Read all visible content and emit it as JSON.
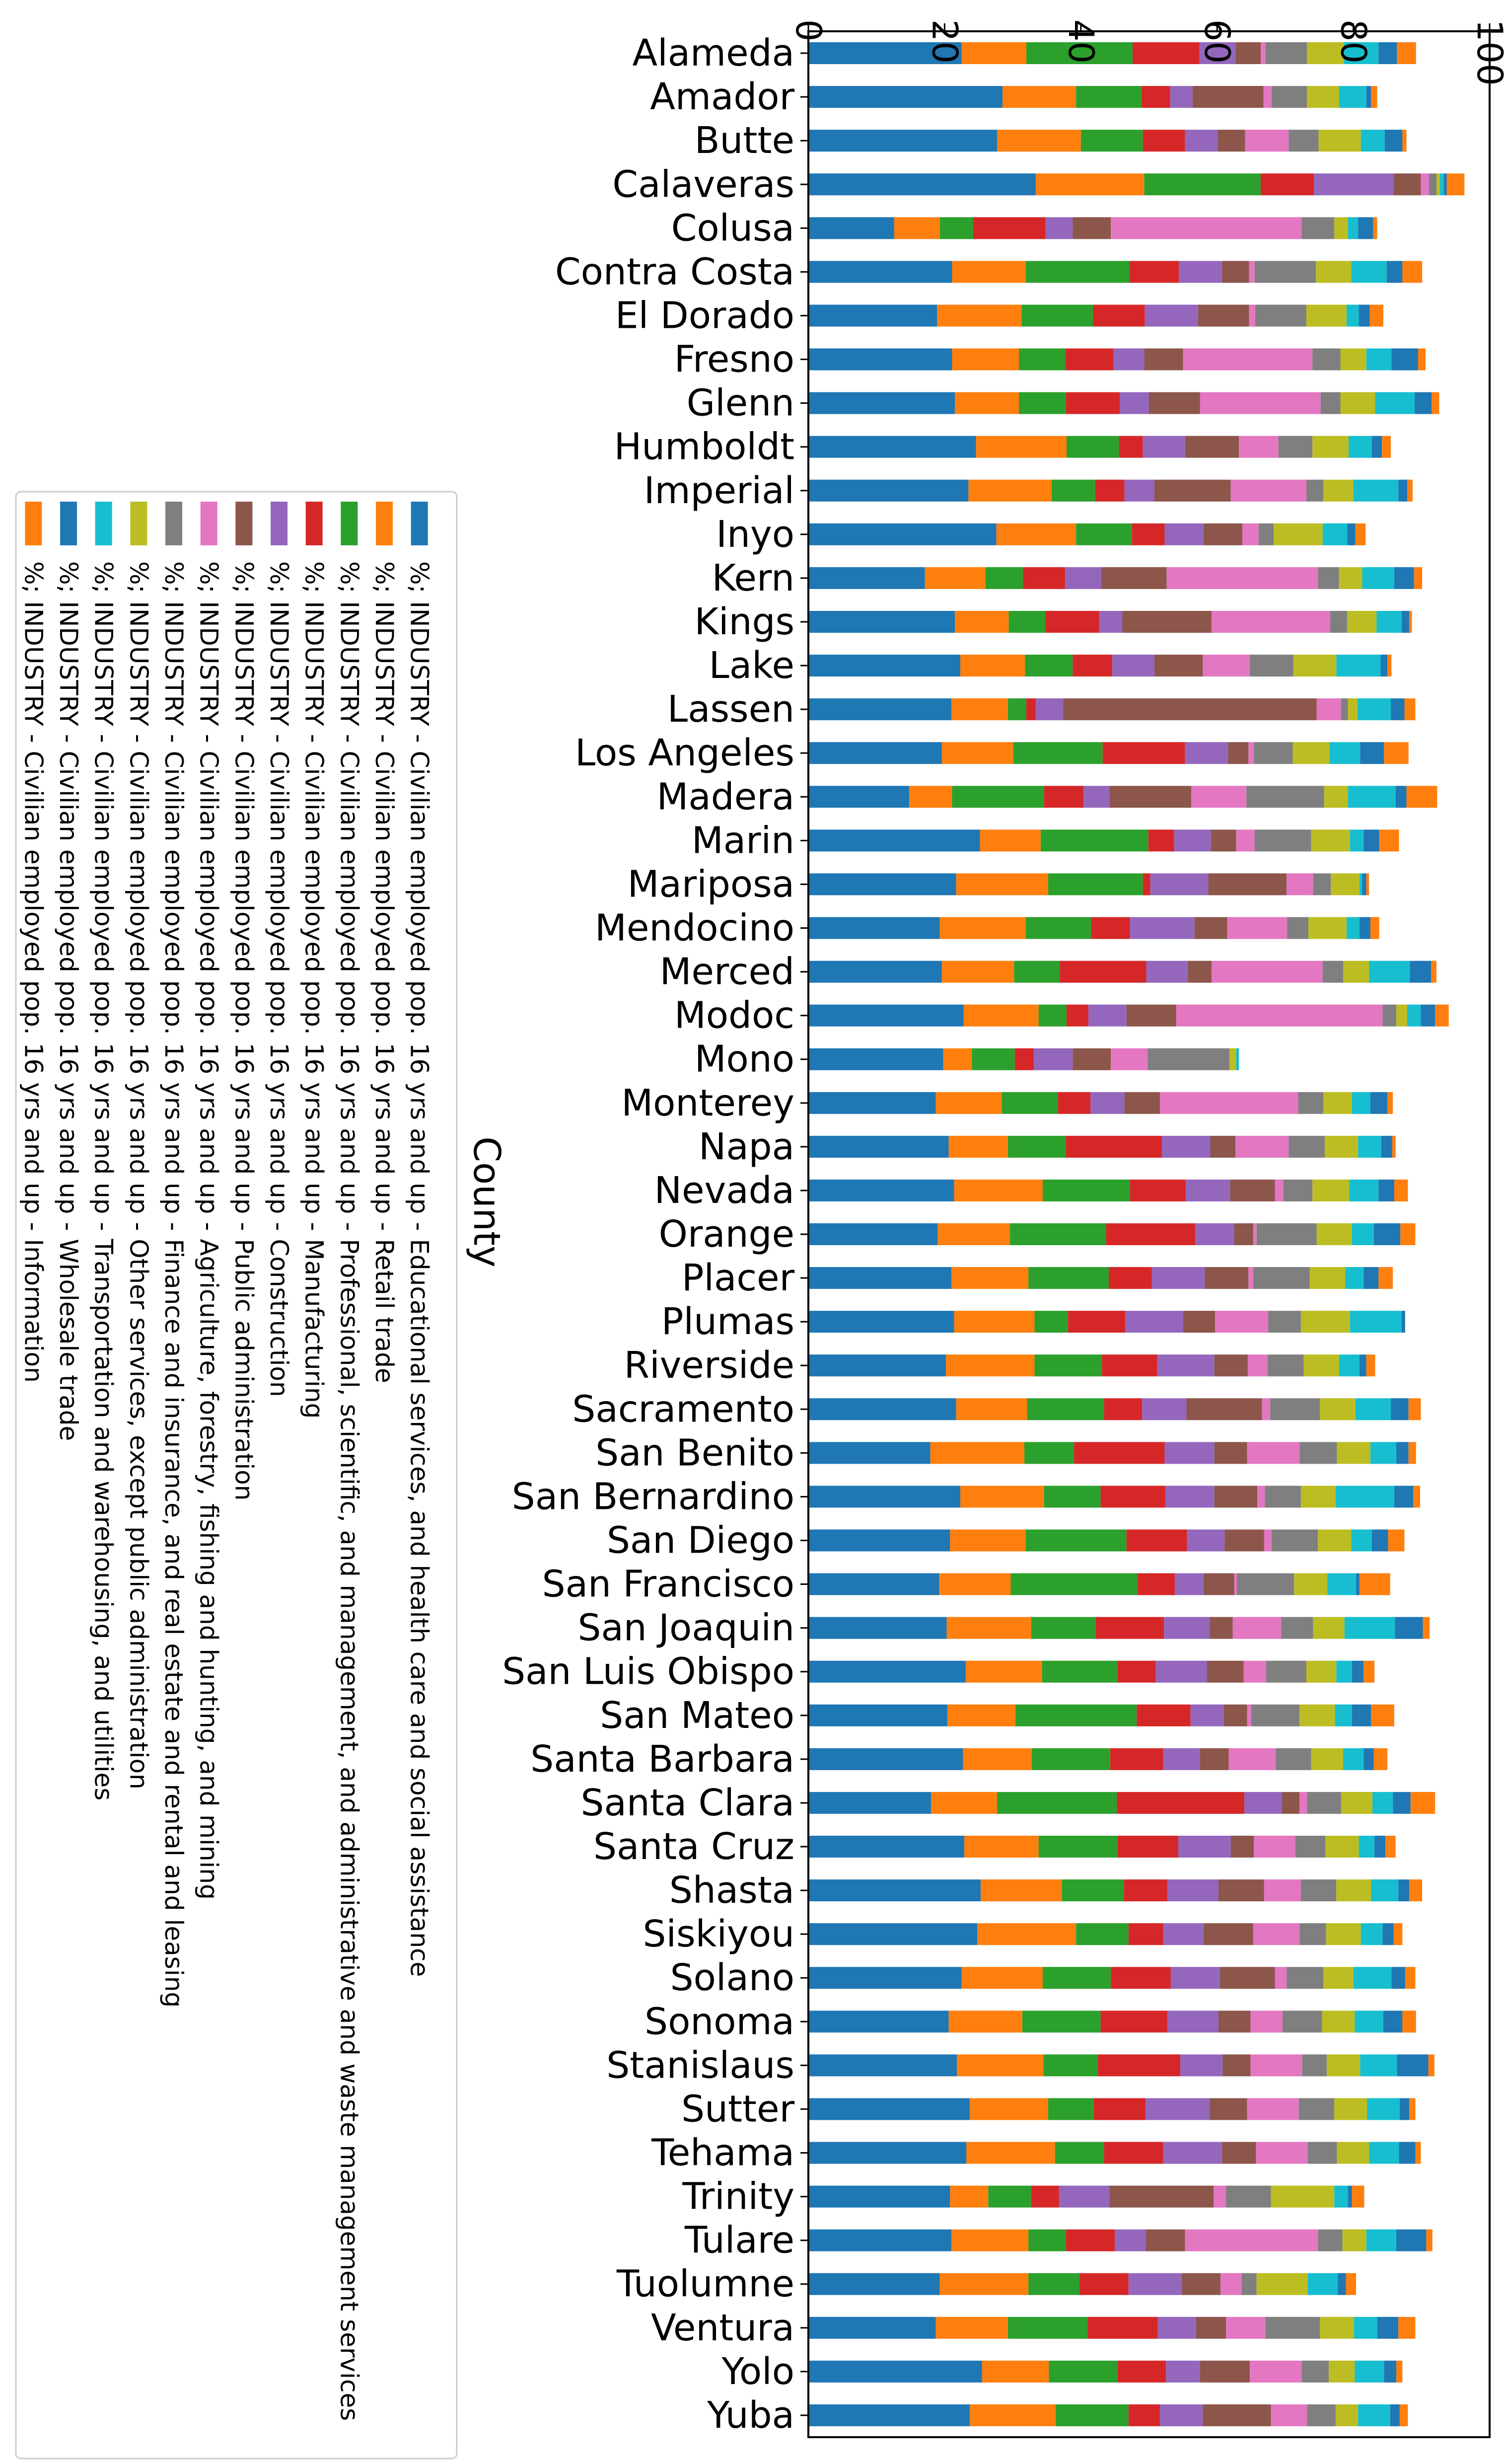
{
  "chart_data": {
    "type": "bar",
    "orientation": "horizontal-stacked",
    "rotation": "figure rotated 90 degrees clockwise",
    "title": "",
    "xlabel": "",
    "ylabel": "County",
    "xlim": [
      0,
      100
    ],
    "ticks": [
      "0",
      "20",
      "40",
      "60",
      "80",
      "100"
    ],
    "grid": false,
    "legend_position": "left",
    "categories": [
      "Alameda",
      "Amador",
      "Butte",
      "Calaveras",
      "Colusa",
      "Contra Costa",
      "El Dorado",
      "Fresno",
      "Glenn",
      "Humboldt",
      "Imperial",
      "Inyo",
      "Kern",
      "Kings",
      "Lake",
      "Lassen",
      "Los Angeles",
      "Madera",
      "Marin",
      "Mariposa",
      "Mendocino",
      "Merced",
      "Modoc",
      "Mono",
      "Monterey",
      "Napa",
      "Nevada",
      "Orange",
      "Placer",
      "Plumas",
      "Riverside",
      "Sacramento",
      "San Benito",
      "San Bernardino",
      "San Diego",
      "San Francisco",
      "San Joaquin",
      "San Luis Obispo",
      "San Mateo",
      "Santa Barbara",
      "Santa Clara",
      "Santa Cruz",
      "Shasta",
      "Siskiyou",
      "Solano",
      "Sonoma",
      "Stanislaus",
      "Sutter",
      "Tehama",
      "Trinity",
      "Tulare",
      "Tuolumne",
      "Ventura",
      "Yolo",
      "Yuba"
    ],
    "series": [
      {
        "name": "%; INDUSTRY - Civilian employed pop. 16 yrs and up - Educational services, and health care and social assistance",
        "color": "#1f77b4",
        "values": [
          22.5,
          28.5,
          27.7,
          33.4,
          12.6,
          21.1,
          18.9,
          21.1,
          21.5,
          24.6,
          23.5,
          27.6,
          17.1,
          21.5,
          22.3,
          21.0,
          19.6,
          14.8,
          25.2,
          21.7,
          19.3,
          19.6,
          22.8,
          19.8,
          18.7,
          20.6,
          21.4,
          19.0,
          21.0,
          21.4,
          20.2,
          21.7,
          17.9,
          22.3,
          20.8,
          19.2,
          20.3,
          23.1,
          20.4,
          22.7,
          18.0,
          22.9,
          25.3,
          24.8,
          22.5,
          20.6,
          21.8,
          23.7,
          23.2,
          20.8,
          21.0,
          19.3,
          18.7,
          25.5,
          23.7
        ]
      },
      {
        "name": "%; INDUSTRY - Civilian employed pop. 16 yrs and up - Retail trade",
        "color": "#ff7f0e",
        "values": [
          9.5,
          10.8,
          12.3,
          15.9,
          6.7,
          10.8,
          12.4,
          9.8,
          9.4,
          13.3,
          12.2,
          11.7,
          8.9,
          7.9,
          9.5,
          8.3,
          10.5,
          6.3,
          8.9,
          13.5,
          12.6,
          10.6,
          11.0,
          4.2,
          9.7,
          8.7,
          13.0,
          10.6,
          11.3,
          11.8,
          13.0,
          10.4,
          13.8,
          12.3,
          11.1,
          10.5,
          12.4,
          11.2,
          10.0,
          10.1,
          9.7,
          10.9,
          11.9,
          14.5,
          11.9,
          10.8,
          12.7,
          11.5,
          13.0,
          5.6,
          11.3,
          13.0,
          10.6,
          9.8,
          12.6
        ]
      },
      {
        "name": "%; INDUSTRY - Civilian employed pop. 16 yrs and up - Professional, scientific, and management, and administrative and waste management services",
        "color": "#2ca02c",
        "values": [
          15.6,
          9.6,
          9.1,
          17.1,
          4.9,
          15.2,
          10.5,
          6.8,
          6.9,
          7.7,
          6.4,
          8.2,
          5.5,
          5.4,
          7.0,
          2.7,
          13.1,
          13.5,
          15.8,
          13.9,
          9.6,
          6.7,
          4.1,
          6.3,
          8.2,
          8.5,
          12.8,
          14.1,
          11.8,
          4.9,
          9.9,
          11.3,
          7.3,
          8.3,
          14.8,
          18.6,
          9.5,
          11.1,
          17.8,
          11.5,
          17.6,
          11.6,
          9.1,
          7.7,
          10.0,
          11.5,
          8.0,
          6.7,
          7.2,
          6.3,
          5.5,
          7.5,
          11.7,
          10.1,
          10.7
        ]
      },
      {
        "name": "%; INDUSTRY - Civilian employed pop. 16 yrs and up - Manufacturing",
        "color": "#d62728",
        "values": [
          9.8,
          4.2,
          6.2,
          7.8,
          10.6,
          7.3,
          7.6,
          7.1,
          7.9,
          3.5,
          4.3,
          4.8,
          6.2,
          7.9,
          5.8,
          1.4,
          12.1,
          5.8,
          3.8,
          1.1,
          5.7,
          12.7,
          3.2,
          2.8,
          4.8,
          14.1,
          8.2,
          13.1,
          6.3,
          8.4,
          8.1,
          5.6,
          13.3,
          9.5,
          8.9,
          5.5,
          10.0,
          5.6,
          7.9,
          7.8,
          18.7,
          8.9,
          6.4,
          5.1,
          8.8,
          9.8,
          12.1,
          7.6,
          8.7,
          4.1,
          7.2,
          7.2,
          10.3,
          7.1,
          4.6
        ]
      },
      {
        "name": "%; INDUSTRY - Civilian employed pop. 16 yrs and up - Construction",
        "color": "#9467bd",
        "values": [
          5.3,
          3.3,
          4.8,
          11.7,
          4.0,
          6.3,
          7.8,
          4.5,
          4.3,
          6.2,
          4.4,
          5.7,
          5.3,
          3.4,
          6.2,
          4.0,
          6.3,
          3.8,
          5.4,
          8.5,
          9.5,
          6.1,
          5.6,
          5.7,
          5.0,
          7.1,
          6.5,
          5.7,
          7.8,
          8.5,
          8.4,
          6.5,
          7.3,
          7.2,
          5.5,
          4.2,
          6.7,
          7.5,
          4.9,
          5.4,
          5.5,
          7.7,
          7.5,
          5.9,
          7.2,
          7.5,
          6.2,
          9.4,
          8.6,
          7.4,
          4.5,
          7.8,
          5.6,
          5.0,
          6.3
        ]
      },
      {
        "name": "%; INDUSTRY - Civilian employed pop. 16 yrs and up - Public administration",
        "color": "#8c564b",
        "values": [
          3.7,
          10.4,
          4.0,
          4.0,
          5.6,
          4.0,
          7.5,
          5.7,
          7.5,
          7.9,
          11.2,
          5.7,
          9.6,
          13.1,
          7.1,
          37.2,
          3.0,
          12.0,
          3.7,
          11.5,
          4.8,
          3.5,
          7.3,
          5.6,
          5.2,
          3.7,
          6.6,
          2.8,
          6.4,
          4.7,
          4.9,
          11.1,
          4.8,
          6.3,
          5.8,
          4.5,
          3.4,
          5.4,
          3.4,
          4.2,
          2.6,
          3.4,
          6.7,
          7.3,
          8.1,
          4.7,
          4.1,
          5.5,
          5.0,
          15.3,
          5.8,
          5.7,
          4.4,
          7.3,
          10.0
        ]
      },
      {
        "name": "%; INDUSTRY - Civilian employed pop. 16 yrs and up - Agriculture, forestry, fishing and hunting, and mining",
        "color": "#e377c2",
        "values": [
          0.7,
          1.2,
          6.4,
          1.2,
          28.0,
          0.8,
          0.9,
          19.0,
          17.7,
          5.8,
          11.1,
          2.4,
          22.2,
          17.4,
          6.9,
          3.6,
          0.8,
          8.1,
          2.7,
          3.9,
          8.8,
          16.3,
          30.3,
          5.4,
          20.3,
          7.8,
          1.2,
          0.5,
          0.7,
          7.8,
          2.9,
          1.2,
          7.7,
          1.1,
          1.1,
          0.4,
          7.1,
          3.3,
          0.6,
          6.9,
          1.1,
          6.1,
          5.4,
          6.8,
          1.7,
          4.7,
          7.6,
          7.6,
          7.6,
          1.8,
          19.5,
          3.1,
          5.8,
          7.6,
          5.3
        ]
      },
      {
        "name": "%; INDUSTRY - Civilian employed pop. 16 yrs and up - Finance and insurance, and real estate and rental and leasing",
        "color": "#7f7f7f",
        "values": [
          6.1,
          5.2,
          4.4,
          1.1,
          4.8,
          9.0,
          7.5,
          4.1,
          2.9,
          5.0,
          2.5,
          2.2,
          3.1,
          2.5,
          6.4,
          1.0,
          5.7,
          11.4,
          8.3,
          2.6,
          3.1,
          3.0,
          2.0,
          12.0,
          3.7,
          5.3,
          4.3,
          8.8,
          8.3,
          4.8,
          5.3,
          7.3,
          5.5,
          5.3,
          6.8,
          8.4,
          4.7,
          5.9,
          7.1,
          5.2,
          5.0,
          4.4,
          5.2,
          3.9,
          5.4,
          5.8,
          3.6,
          5.2,
          4.3,
          6.6,
          3.6,
          2.2,
          8.0,
          4.0,
          4.2
        ]
      },
      {
        "name": "%; INDUSTRY - Civilian employed pop. 16 yrs and up - Other services, except public administration",
        "color": "#bcbd22",
        "values": [
          5.4,
          4.7,
          6.2,
          0.5,
          2.0,
          5.2,
          5.9,
          3.8,
          5.1,
          5.3,
          4.4,
          7.2,
          3.4,
          4.3,
          6.3,
          1.4,
          5.4,
          3.5,
          5.7,
          4.2,
          5.6,
          3.8,
          1.6,
          1.0,
          4.2,
          4.9,
          5.4,
          5.2,
          5.2,
          7.2,
          5.2,
          5.2,
          4.9,
          5.1,
          4.9,
          4.9,
          4.6,
          4.4,
          5.2,
          4.7,
          4.6,
          4.9,
          5.1,
          5.1,
          4.4,
          4.8,
          4.9,
          4.8,
          4.7,
          9.3,
          3.5,
          7.5,
          5.0,
          3.8,
          3.3
        ]
      },
      {
        "name": "%; INDUSTRY - Civilian employed pop. 16 yrs and up - Transportation and warehousing, and utilities",
        "color": "#17becf",
        "values": [
          5.1,
          4.0,
          3.5,
          0.6,
          1.5,
          5.2,
          1.8,
          3.7,
          5.8,
          3.4,
          6.6,
          3.6,
          4.7,
          3.7,
          6.5,
          4.9,
          4.5,
          7.0,
          2.0,
          0.4,
          1.9,
          6.0,
          2.0,
          0.4,
          2.7,
          3.4,
          4.3,
          3.2,
          2.7,
          7.6,
          3.0,
          5.2,
          3.8,
          8.6,
          3.0,
          4.2,
          7.4,
          2.3,
          2.5,
          3.0,
          3.0,
          2.3,
          4.0,
          3.2,
          5.6,
          4.2,
          5.4,
          4.8,
          4.4,
          2.0,
          4.4,
          4.4,
          3.4,
          4.3,
          4.7
        ]
      },
      {
        "name": "%; INDUSTRY - Civilian employed pop. 16 yrs and up - Wholesale trade",
        "color": "#1f77b4",
        "values": [
          2.7,
          0.7,
          2.6,
          0.4,
          2.2,
          2.3,
          1.6,
          3.9,
          2.5,
          1.5,
          1.3,
          1.2,
          2.9,
          1.1,
          1.0,
          2.0,
          3.5,
          1.6,
          2.3,
          0.6,
          1.6,
          3.1,
          2.1,
          0.0,
          2.5,
          1.6,
          2.3,
          3.9,
          2.2,
          0.5,
          1.0,
          2.6,
          1.8,
          2.8,
          2.4,
          0.5,
          4.1,
          1.7,
          2.8,
          1.5,
          2.6,
          1.6,
          1.6,
          1.6,
          2.0,
          2.8,
          4.6,
          1.4,
          2.4,
          0.6,
          4.4,
          1.2,
          3.1,
          1.8,
          1.4
        ]
      },
      {
        "name": "%; INDUSTRY - Civilian employed pop. 16 yrs and up - Information",
        "color": "#ff7f0e",
        "values": [
          2.8,
          0.9,
          0.6,
          2.6,
          0.6,
          2.9,
          2.0,
          1.1,
          1.1,
          1.3,
          0.8,
          1.5,
          1.2,
          0.4,
          0.6,
          1.6,
          3.6,
          4.5,
          2.9,
          0.4,
          1.3,
          0.8,
          2.0,
          0.0,
          0.8,
          0.5,
          2.0,
          2.2,
          2.1,
          0.0,
          1.3,
          1.8,
          1.1,
          1.0,
          2.4,
          4.5,
          1.0,
          1.6,
          3.4,
          2.0,
          3.6,
          1.5,
          1.9,
          1.3,
          1.5,
          2.0,
          0.9,
          0.9,
          0.8,
          1.8,
          0.9,
          1.5,
          2.5,
          0.9,
          1.2
        ]
      }
    ]
  }
}
